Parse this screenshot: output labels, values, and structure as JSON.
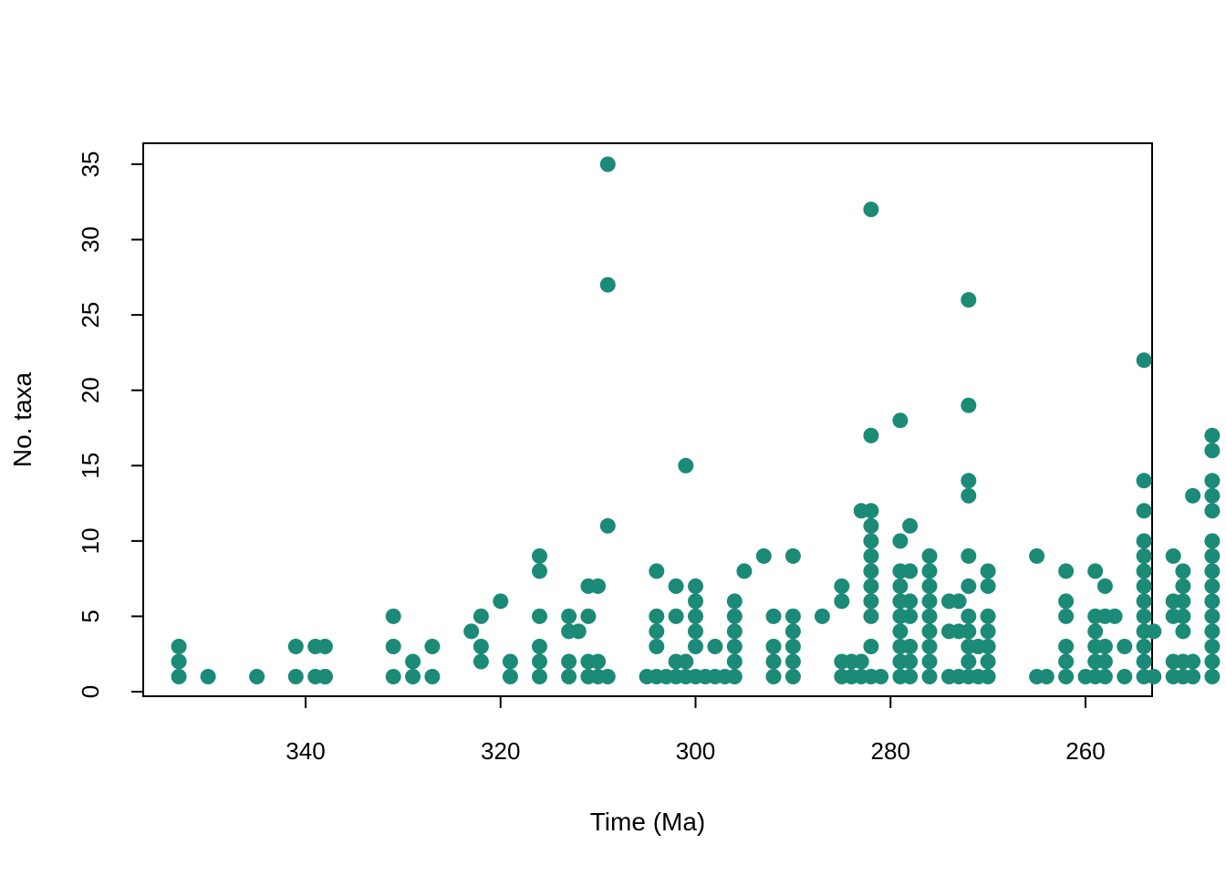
{
  "chart_data": {
    "type": "scatter",
    "title": "",
    "xlabel": "Time (Ma)",
    "ylabel": "No. taxa",
    "xlim": [
      355.5,
      252.5
    ],
    "ylim": [
      -0.6,
      36.2
    ],
    "x_reversed": true,
    "x_ticks": [
      340,
      320,
      300,
      280,
      260
    ],
    "y_ticks": [
      0,
      5,
      10,
      15,
      20,
      25,
      30,
      35
    ],
    "grid": false,
    "legend": "none",
    "point_color": "#1b8a76",
    "points": [
      [
        353,
        3
      ],
      [
        353,
        2
      ],
      [
        353,
        1
      ],
      [
        350,
        1
      ],
      [
        345,
        1
      ],
      [
        341,
        3
      ],
      [
        341,
        1
      ],
      [
        339,
        3
      ],
      [
        339,
        1
      ],
      [
        338,
        1
      ],
      [
        338,
        3
      ],
      [
        338,
        1
      ],
      [
        331,
        5
      ],
      [
        331,
        3
      ],
      [
        331,
        1
      ],
      [
        329,
        2
      ],
      [
        329,
        1
      ],
      [
        327,
        3
      ],
      [
        327,
        1
      ],
      [
        323,
        4
      ],
      [
        322,
        5
      ],
      [
        322,
        3
      ],
      [
        322,
        2
      ],
      [
        320,
        6
      ],
      [
        319,
        2
      ],
      [
        319,
        1
      ],
      [
        316,
        9
      ],
      [
        316,
        8
      ],
      [
        316,
        5
      ],
      [
        316,
        3
      ],
      [
        316,
        2
      ],
      [
        316,
        1
      ],
      [
        313,
        4
      ],
      [
        313,
        5
      ],
      [
        313,
        2
      ],
      [
        313,
        1
      ],
      [
        312,
        4
      ],
      [
        311,
        5
      ],
      [
        311,
        2
      ],
      [
        311,
        1
      ],
      [
        311,
        7
      ],
      [
        310,
        7
      ],
      [
        310,
        2
      ],
      [
        310,
        1
      ],
      [
        309,
        35
      ],
      [
        309,
        27
      ],
      [
        309,
        11
      ],
      [
        309,
        1
      ],
      [
        305,
        1
      ],
      [
        304,
        8
      ],
      [
        304,
        5
      ],
      [
        304,
        4
      ],
      [
        304,
        3
      ],
      [
        304,
        1
      ],
      [
        303,
        1
      ],
      [
        302,
        7
      ],
      [
        302,
        5
      ],
      [
        302,
        2
      ],
      [
        302,
        1
      ],
      [
        301,
        2
      ],
      [
        301,
        1
      ],
      [
        300,
        7
      ],
      [
        300,
        6
      ],
      [
        300,
        5
      ],
      [
        300,
        4
      ],
      [
        300,
        3
      ],
      [
        300,
        1
      ],
      [
        301,
        15
      ],
      [
        299,
        1
      ],
      [
        298,
        3
      ],
      [
        298,
        1
      ],
      [
        297,
        1
      ],
      [
        296,
        6
      ],
      [
        296,
        5
      ],
      [
        296,
        4
      ],
      [
        296,
        3
      ],
      [
        296,
        2
      ],
      [
        296,
        1
      ],
      [
        295,
        8
      ],
      [
        293,
        9
      ],
      [
        292,
        5
      ],
      [
        292,
        3
      ],
      [
        292,
        2
      ],
      [
        292,
        1
      ],
      [
        290,
        9
      ],
      [
        290,
        5
      ],
      [
        290,
        4
      ],
      [
        290,
        3
      ],
      [
        290,
        2
      ],
      [
        290,
        1
      ],
      [
        287,
        5
      ],
      [
        285,
        7
      ],
      [
        285,
        6
      ],
      [
        285,
        2
      ],
      [
        285,
        1
      ],
      [
        284,
        2
      ],
      [
        284,
        1
      ],
      [
        283,
        12
      ],
      [
        283,
        2
      ],
      [
        283,
        1
      ],
      [
        282,
        32
      ],
      [
        282,
        17
      ],
      [
        282,
        12
      ],
      [
        282,
        11
      ],
      [
        282,
        10
      ],
      [
        282,
        9
      ],
      [
        282,
        8
      ],
      [
        282,
        7
      ],
      [
        282,
        6
      ],
      [
        282,
        5
      ],
      [
        282,
        3
      ],
      [
        282,
        1
      ],
      [
        281,
        1
      ],
      [
        279,
        18
      ],
      [
        279,
        10
      ],
      [
        279,
        8
      ],
      [
        279,
        7
      ],
      [
        279,
        6
      ],
      [
        279,
        5
      ],
      [
        279,
        4
      ],
      [
        279,
        3
      ],
      [
        279,
        2
      ],
      [
        279,
        1
      ],
      [
        278,
        11
      ],
      [
        278,
        8
      ],
      [
        278,
        6
      ],
      [
        278,
        5
      ],
      [
        278,
        3
      ],
      [
        278,
        2
      ],
      [
        278,
        1
      ],
      [
        276,
        9
      ],
      [
        276,
        8
      ],
      [
        276,
        7
      ],
      [
        276,
        6
      ],
      [
        276,
        5
      ],
      [
        276,
        4
      ],
      [
        276,
        3
      ],
      [
        276,
        2
      ],
      [
        276,
        1
      ],
      [
        274,
        6
      ],
      [
        274,
        4
      ],
      [
        274,
        1
      ],
      [
        273,
        6
      ],
      [
        273,
        4
      ],
      [
        273,
        1
      ],
      [
        272,
        26
      ],
      [
        272,
        19
      ],
      [
        272,
        14
      ],
      [
        272,
        13
      ],
      [
        272,
        9
      ],
      [
        272,
        7
      ],
      [
        272,
        5
      ],
      [
        272,
        4
      ],
      [
        272,
        3
      ],
      [
        272,
        2
      ],
      [
        272,
        1
      ],
      [
        271,
        3
      ],
      [
        271,
        1
      ],
      [
        270,
        8
      ],
      [
        270,
        7
      ],
      [
        270,
        5
      ],
      [
        270,
        4
      ],
      [
        270,
        3
      ],
      [
        270,
        2
      ],
      [
        270,
        1
      ],
      [
        265,
        9
      ],
      [
        265,
        1
      ],
      [
        264,
        1
      ],
      [
        262,
        8
      ],
      [
        262,
        6
      ],
      [
        262,
        5
      ],
      [
        262,
        3
      ],
      [
        262,
        2
      ],
      [
        262,
        1
      ],
      [
        260,
        1
      ],
      [
        259,
        8
      ],
      [
        259,
        5
      ],
      [
        259,
        4
      ],
      [
        259,
        3
      ],
      [
        259,
        2
      ],
      [
        259,
        1
      ],
      [
        258,
        7
      ],
      [
        258,
        5
      ],
      [
        258,
        3
      ],
      [
        258,
        2
      ],
      [
        258,
        1
      ],
      [
        257,
        5
      ],
      [
        256,
        1
      ],
      [
        256,
        3
      ],
      [
        254,
        22
      ],
      [
        254,
        14
      ],
      [
        254,
        12
      ],
      [
        254,
        10
      ],
      [
        254,
        9
      ],
      [
        254,
        8
      ],
      [
        254,
        7
      ],
      [
        254,
        6
      ],
      [
        254,
        5
      ],
      [
        254,
        4
      ],
      [
        254,
        3
      ],
      [
        254,
        2
      ],
      [
        254,
        1
      ],
      [
        253,
        4
      ],
      [
        253,
        1
      ],
      [
        251,
        9
      ],
      [
        251,
        6
      ],
      [
        251,
        5
      ],
      [
        251,
        2
      ],
      [
        251,
        1
      ],
      [
        250,
        8
      ],
      [
        250,
        7
      ],
      [
        250,
        6
      ],
      [
        250,
        5
      ],
      [
        250,
        4
      ],
      [
        250,
        2
      ],
      [
        250,
        1
      ],
      [
        249,
        13
      ],
      [
        249,
        2
      ],
      [
        249,
        1
      ],
      [
        247,
        17
      ],
      [
        247,
        16
      ],
      [
        247,
        14
      ],
      [
        247,
        13
      ],
      [
        247,
        12
      ],
      [
        247,
        10
      ],
      [
        247,
        9
      ],
      [
        247,
        8
      ],
      [
        247,
        7
      ],
      [
        247,
        6
      ],
      [
        247,
        5
      ],
      [
        247,
        4
      ],
      [
        247,
        3
      ],
      [
        247,
        2
      ],
      [
        247,
        1
      ]
    ]
  }
}
